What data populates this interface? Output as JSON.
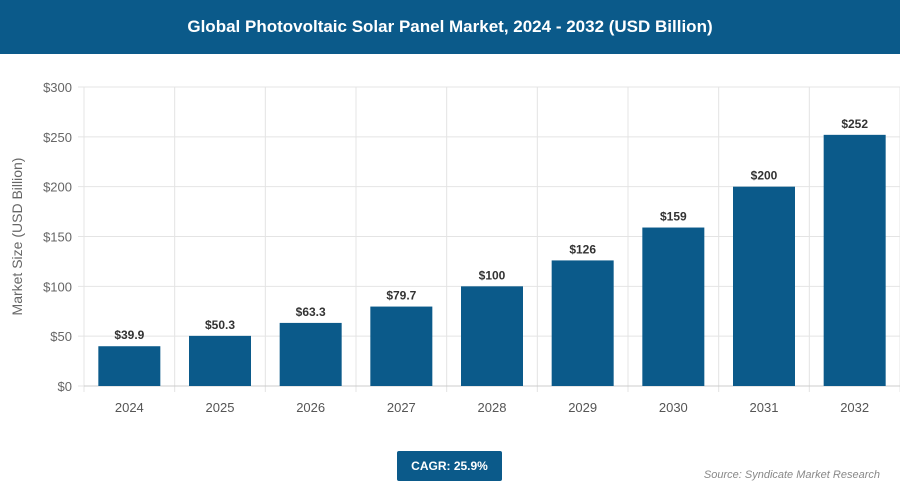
{
  "header": {
    "title": "Global Photovoltaic Solar Panel Market, 2024 - 2032 (USD Billion)"
  },
  "chart_data": {
    "type": "bar",
    "title": "Global Photovoltaic Solar Panel Market, 2024 - 2032 (USD Billion)",
    "categories": [
      "2024",
      "2025",
      "2026",
      "2027",
      "2028",
      "2029",
      "2030",
      "2031",
      "2032"
    ],
    "values": [
      39.9,
      50.3,
      63.3,
      79.7,
      100,
      126,
      159,
      200,
      252
    ],
    "data_labels": [
      "$39.9",
      "$50.3",
      "$63.3",
      "$79.7",
      "$100",
      "$126",
      "$159",
      "$200",
      "$252"
    ],
    "ylabel": "Market Size (USD Billion)",
    "xlabel": "",
    "ylim": [
      0,
      300
    ],
    "yticks": [
      0,
      50,
      100,
      150,
      200,
      250,
      300
    ],
    "ytick_labels": [
      "$0",
      "$50",
      "$100",
      "$150",
      "$200",
      "$250",
      "$300"
    ],
    "grid": true,
    "bar_color": "#0b5a8a"
  },
  "footer": {
    "cagr": "CAGR: 25.9%",
    "source": "Source: Syndicate Market Research"
  }
}
